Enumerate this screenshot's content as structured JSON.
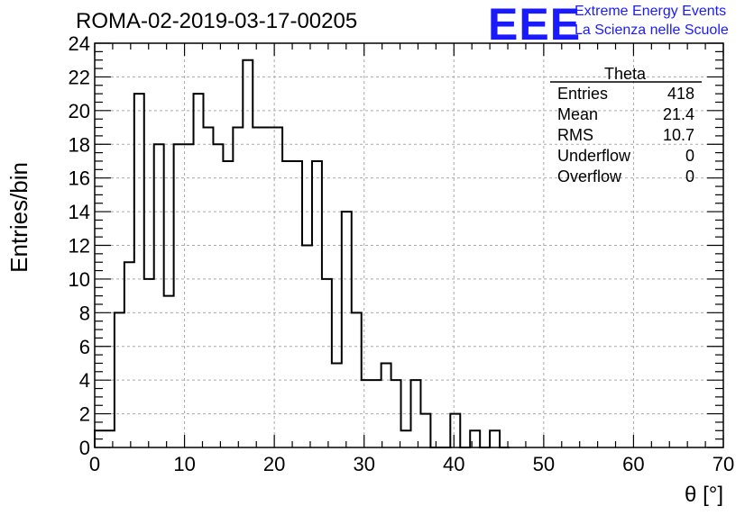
{
  "header": {
    "run_title": "ROMA-02-2019-03-17-00205",
    "logo_text": "EEE",
    "logo_line1": "Extreme Energy Events",
    "logo_line2": "La Scienza nelle Scuole"
  },
  "colors": {
    "logo": "#1a1aff",
    "histogram": "#000000",
    "grid": "#aaaaaa"
  },
  "stats_box": {
    "name": "Theta",
    "rows": [
      {
        "label": "Entries",
        "value": "418"
      },
      {
        "label": "Mean",
        "value": "21.4"
      },
      {
        "label": "RMS",
        "value": "10.7"
      },
      {
        "label": "Underflow",
        "value": "0"
      },
      {
        "label": "Overflow",
        "value": "0"
      }
    ]
  },
  "chart_data": {
    "type": "bar",
    "style": "step-histogram",
    "xlabel": "θ [°]",
    "ylabel": "Entries/bin",
    "xlim": [
      0,
      70
    ],
    "ylim": [
      0,
      24
    ],
    "grid": true,
    "xticks": [
      0,
      10,
      20,
      30,
      40,
      50,
      60,
      70
    ],
    "yticks": [
      0,
      2,
      4,
      6,
      8,
      10,
      12,
      14,
      16,
      18,
      20,
      22,
      24
    ],
    "bin_width": 1.1,
    "values": [
      1,
      1,
      8,
      11,
      21,
      10,
      18,
      9,
      18,
      18,
      21,
      19,
      18,
      17,
      19,
      23,
      19,
      19,
      19,
      17,
      17,
      12,
      17,
      10,
      5,
      14,
      8,
      4,
      4,
      5,
      4,
      1,
      4,
      2,
      0,
      0,
      2,
      0,
      1,
      0,
      1,
      0
    ]
  }
}
